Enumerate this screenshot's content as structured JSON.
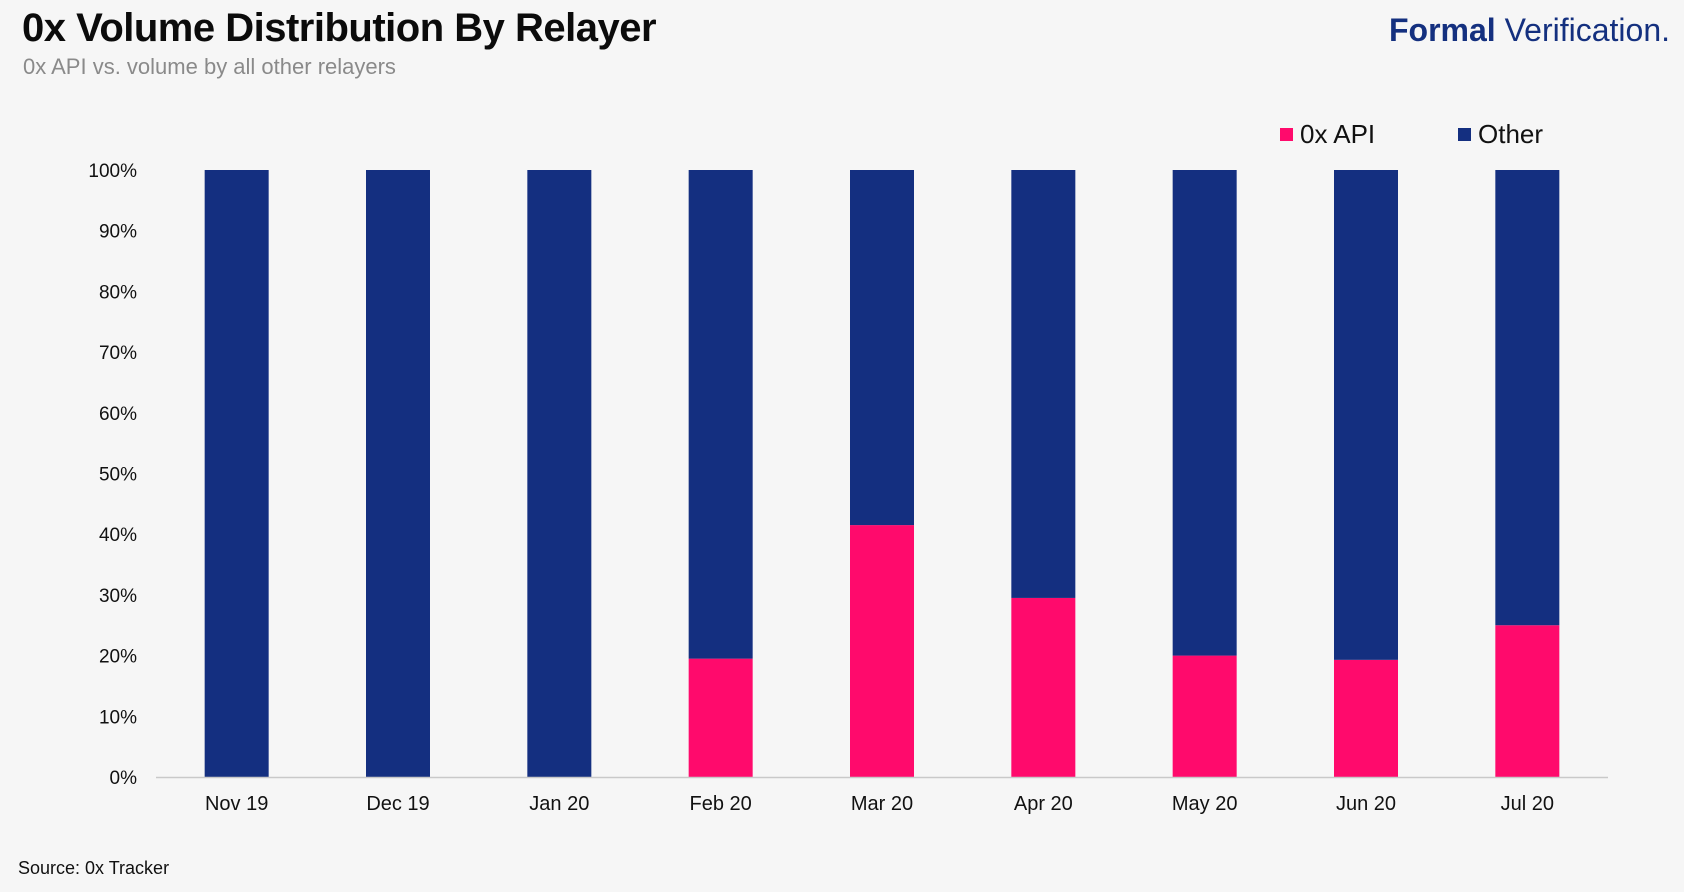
{
  "header": {
    "title": "0x Volume Distribution By Relayer",
    "subtitle": "0x API vs. volume by all other relayers"
  },
  "brand": {
    "bold": "Formal",
    "light": " Verification."
  },
  "footer": {
    "source": "Source: 0x Tracker"
  },
  "colors": {
    "api": "#ff0a6c",
    "other": "#142f80",
    "axis": "#c9c9c9",
    "text": "#111111"
  },
  "chart_data": {
    "type": "bar",
    "stacked": true,
    "categories": [
      "Nov 19",
      "Dec 19",
      "Jan 20",
      "Feb 20",
      "Mar 20",
      "Apr 20",
      "May 20",
      "Jun 20",
      "Jul 20"
    ],
    "series": [
      {
        "name": "0x API",
        "color": "#ff0a6c",
        "values": [
          0,
          0,
          0,
          19.5,
          41.5,
          29.5,
          20,
          19.3,
          25
        ]
      },
      {
        "name": "Other",
        "color": "#142f80",
        "values": [
          100,
          100,
          100,
          80.5,
          58.5,
          70.5,
          80,
          80.7,
          75
        ]
      }
    ],
    "title": "0x Volume Distribution By Relayer",
    "subtitle": "0x API vs. volume by all other relayers",
    "xlabel": "",
    "ylabel": "",
    "ylim": [
      0,
      100
    ],
    "yticks": [
      "0%",
      "10%",
      "20%",
      "30%",
      "40%",
      "50%",
      "60%",
      "70%",
      "80%",
      "90%",
      "100%"
    ],
    "grid": false,
    "legend_position": "top-right"
  }
}
